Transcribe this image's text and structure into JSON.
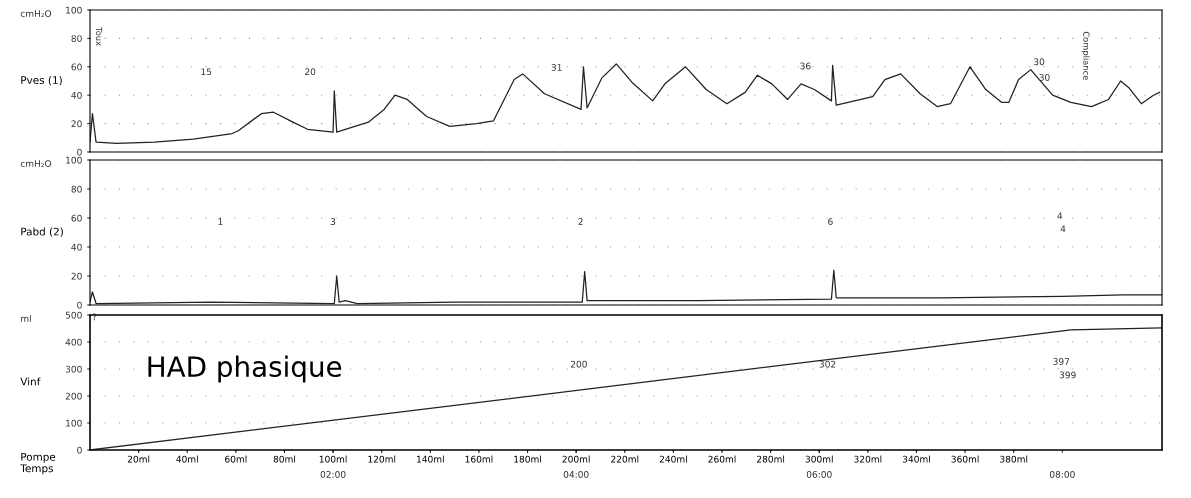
{
  "chart_data": [
    {
      "type": "line",
      "ylabel": "Pves (1)",
      "ylim": [
        0,
        100
      ],
      "yticks": [
        0,
        20,
        40,
        60,
        80,
        100
      ],
      "xlim": [
        0,
        8.82
      ],
      "tick_labels": "y",
      "grid": "y",
      "legend": false,
      "series": [
        {
          "color": "#222222",
          "x": [
            0,
            0.02,
            0.05,
            0.22,
            0.53,
            0.85,
            1.17,
            1.22,
            1.41,
            1.51,
            1.67,
            1.79,
            2.0,
            2.01,
            2.03,
            2.29,
            2.42,
            2.51,
            2.61,
            2.77,
            2.96,
            3.18,
            3.32,
            3.49,
            3.56,
            3.74,
            4.04,
            4.06,
            4.09,
            4.21,
            4.33,
            4.46,
            4.63,
            4.73,
            4.9,
            5.07,
            5.24,
            5.39,
            5.49,
            5.61,
            5.74,
            5.85,
            5.96,
            6.1,
            6.11,
            6.14,
            6.44,
            6.54,
            6.67,
            6.83,
            6.97,
            7.08,
            7.24,
            7.37,
            7.5,
            7.56,
            7.64,
            7.74,
            7.92,
            8.07,
            8.24,
            8.38,
            8.48,
            8.55,
            8.65,
            8.75,
            8.8
          ],
          "values": [
            7,
            27,
            7,
            6,
            7,
            9,
            13,
            15,
            27,
            28,
            21,
            16,
            14,
            43,
            14,
            21,
            30,
            40,
            37,
            25,
            18,
            20,
            22,
            51,
            55,
            41,
            30,
            60,
            31,
            52,
            62,
            49,
            36,
            48,
            60,
            44,
            34,
            42,
            54,
            48,
            37,
            48,
            44,
            36,
            61,
            33,
            39,
            51,
            55,
            41,
            32,
            34,
            60,
            44,
            35,
            35,
            51,
            58,
            40,
            35,
            32,
            37,
            50,
            45,
            34,
            40,
            42
          ]
        }
      ],
      "annotations": [
        "cmH₂O",
        "Toux",
        "15",
        "20",
        "31",
        "36",
        "30",
        "30",
        "Compliance"
      ]
    },
    {
      "type": "line",
      "ylabel": "Pabd (2)",
      "ylim": [
        0,
        100
      ],
      "yticks": [
        0,
        20,
        40,
        60,
        80,
        100
      ],
      "xlim": [
        0,
        8.82
      ],
      "tick_labels": "y",
      "grid": "y",
      "legend": false,
      "series": [
        {
          "color": "#222222",
          "x": [
            0,
            0.02,
            0.05,
            1.0,
            2.01,
            2.03,
            2.05,
            2.1,
            2.2,
            3.0,
            4.05,
            4.07,
            4.09,
            5.0,
            6.1,
            6.12,
            6.14,
            7.0,
            8.0,
            8.5,
            8.82
          ],
          "values": [
            2,
            9,
            1,
            2,
            1,
            20,
            2,
            3,
            1,
            2,
            2,
            23,
            3,
            3,
            4,
            24,
            5,
            5,
            6,
            7,
            7
          ]
        }
      ],
      "annotations": [
        "cmH₂O",
        "1",
        "3",
        "2",
        "6",
        "4",
        "4"
      ]
    },
    {
      "type": "line",
      "ylabel": "Vinf",
      "xlabel": "Temps",
      "x2label": "Pompe",
      "ylim": [
        0,
        500
      ],
      "yticks": [
        0,
        100,
        200,
        300,
        400,
        500
      ],
      "xlim": [
        0,
        8.82
      ],
      "xticks": [
        {
          "value": 2,
          "label": "02:00"
        },
        {
          "value": 4,
          "label": "04:00"
        },
        {
          "value": 6,
          "label": "06:00"
        },
        {
          "value": 8,
          "label": "08:00"
        }
      ],
      "x2lim": [
        0,
        441
      ],
      "x2ticks": [
        {
          "value": 20,
          "label": "20ml"
        },
        {
          "value": 40,
          "label": "40ml"
        },
        {
          "value": 60,
          "label": "60ml"
        },
        {
          "value": 80,
          "label": "80ml"
        },
        {
          "value": 100,
          "label": "100ml"
        },
        {
          "value": 120,
          "label": "120ml"
        },
        {
          "value": 140,
          "label": "140ml"
        },
        {
          "value": 160,
          "label": "160ml"
        },
        {
          "value": 180,
          "label": "180ml"
        },
        {
          "value": 200,
          "label": "200ml"
        },
        {
          "value": 220,
          "label": "220ml"
        },
        {
          "value": 240,
          "label": "240ml"
        },
        {
          "value": 260,
          "label": "260ml"
        },
        {
          "value": 280,
          "label": "280ml"
        },
        {
          "value": 300,
          "label": "300ml"
        },
        {
          "value": 320,
          "label": "320ml"
        },
        {
          "value": 340,
          "label": "340ml"
        },
        {
          "value": 360,
          "label": "360ml"
        },
        {
          "value": 380,
          "label": "380ml"
        }
      ],
      "grid": "y",
      "legend": false,
      "series": [
        {
          "color": "#222222",
          "x": [
            0,
            8.07,
            8.82
          ],
          "values": [
            0,
            445,
            452
          ]
        }
      ],
      "annotations": [
        "ml",
        "HAD phasique",
        "?",
        "200",
        "302",
        "397",
        "399"
      ]
    }
  ]
}
